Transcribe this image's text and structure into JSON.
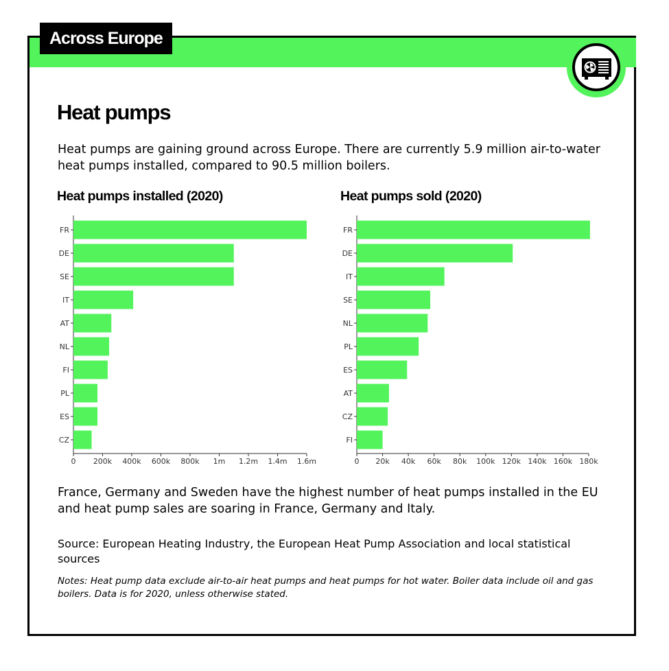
{
  "header": {
    "label": "Across Europe",
    "icon": "heat-pump-icon",
    "accent_color": "#53f35c"
  },
  "title": "Heat pumps",
  "intro": "Heat pumps are gaining ground across Europe. There are currently 5.9 million air-to-water heat pumps installed, compared to 90.5 million boilers.",
  "summary": "France, Germany and Sweden have the highest number of heat pumps installed in the EU and heat pump sales are soaring in France, Germany and Italy.",
  "source": "Source: European Heating Industry, the European Heat Pump Association and local statistical sources",
  "notes": "Notes: Heat pump data exclude air-to-air heat pumps and heat pumps for hot water. Boiler data include oil and gas boilers. Data is for 2020, unless otherwise stated.",
  "chart_data": [
    {
      "type": "bar",
      "orientation": "horizontal",
      "title": "Heat pumps installed (2020)",
      "categories": [
        "FR",
        "DE",
        "SE",
        "IT",
        "AT",
        "NL",
        "FI",
        "PL",
        "ES",
        "CZ"
      ],
      "values": [
        1600000,
        1100000,
        1100000,
        410000,
        260000,
        245000,
        235000,
        165000,
        165000,
        125000
      ],
      "xlim": [
        0,
        1600000
      ],
      "ticks": [
        0,
        200000,
        400000,
        600000,
        800000,
        1000000,
        1200000,
        1400000,
        1600000
      ],
      "tick_labels": [
        "0",
        "200k",
        "400k",
        "600k",
        "800k",
        "1m",
        "1.2m",
        "1.4m",
        "1.6m"
      ],
      "bar_color": "#53f35c"
    },
    {
      "type": "bar",
      "orientation": "horizontal",
      "title": "Heat pumps sold (2020)",
      "categories": [
        "FR",
        "DE",
        "IT",
        "SE",
        "NL",
        "PL",
        "ES",
        "AT",
        "CZ",
        "FI"
      ],
      "values": [
        181000,
        121000,
        68000,
        57000,
        55000,
        48000,
        39000,
        25000,
        24000,
        20000
      ],
      "xlim": [
        0,
        180000
      ],
      "ticks": [
        0,
        20000,
        40000,
        60000,
        80000,
        100000,
        120000,
        140000,
        160000,
        180000
      ],
      "tick_labels": [
        "0",
        "20k",
        "40k",
        "60k",
        "80k",
        "100k",
        "120k",
        "140k",
        "160k",
        "180k"
      ],
      "bar_color": "#53f35c"
    }
  ]
}
